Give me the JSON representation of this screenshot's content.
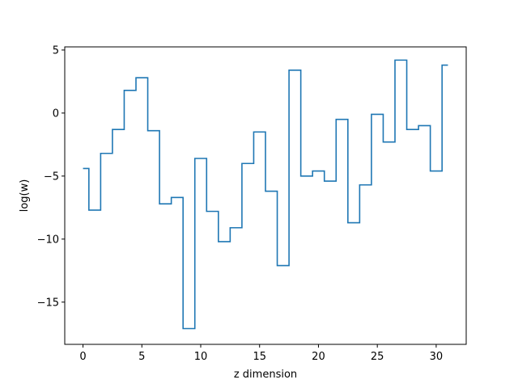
{
  "chart_data": {
    "type": "line",
    "drawstyle": "steps-mid",
    "xlabel": "z dimension",
    "ylabel": "log(w)",
    "xlim": [
      -1.55,
      32.55
    ],
    "ylim": [
      -18.35,
      5.25
    ],
    "xticks": [
      0,
      5,
      10,
      15,
      20,
      25,
      30
    ],
    "yticks": [
      5,
      0,
      -5,
      -10,
      -15
    ],
    "xtick_labels": [
      "0",
      "5",
      "10",
      "15",
      "20",
      "25",
      "30"
    ],
    "ytick_labels": [
      "5",
      "0",
      "−5",
      "−10",
      "−15"
    ],
    "grid": false,
    "legend": "none",
    "series_color": "#1f77b4",
    "x": [
      0,
      1,
      2,
      3,
      4,
      5,
      6,
      7,
      8,
      9,
      10,
      11,
      12,
      13,
      14,
      15,
      16,
      17,
      18,
      19,
      20,
      21,
      22,
      23,
      24,
      25,
      26,
      27,
      28,
      29,
      30,
      31
    ],
    "values": [
      -4.4,
      -7.7,
      -3.2,
      -1.3,
      1.8,
      2.8,
      -1.4,
      -7.2,
      -6.7,
      -17.1,
      -3.6,
      -7.8,
      -10.2,
      -9.1,
      -4.0,
      -1.5,
      -6.2,
      -12.1,
      3.4,
      -5.0,
      -4.6,
      -5.4,
      -0.5,
      -8.7,
      -5.7,
      -0.1,
      -2.3,
      4.2,
      -1.3,
      -1.0,
      -4.6,
      3.8
    ]
  }
}
